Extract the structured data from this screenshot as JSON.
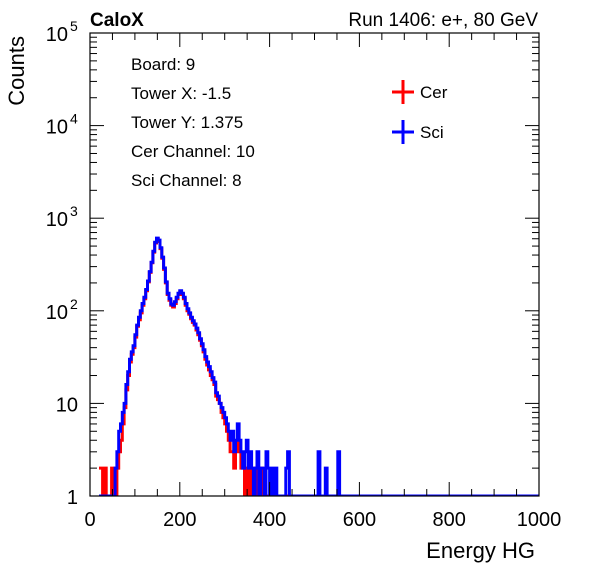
{
  "header": {
    "left_label": "CaloX",
    "right_label": "Run 1406: e+, 80 GeV"
  },
  "info_box": {
    "lines": [
      "Board: 9",
      "Tower X: -1.5",
      "Tower Y: 1.375",
      "Cer Channel: 10",
      "Sci Channel: 8"
    ]
  },
  "chart_data": {
    "type": "line",
    "xlabel": "Energy HG",
    "ylabel": "Counts",
    "xlim": [
      0,
      1000
    ],
    "ylim": [
      1,
      100000
    ],
    "yscale": "log",
    "x_ticks": [
      0,
      200,
      400,
      600,
      800,
      1000
    ],
    "x_tick_labels": [
      "0",
      "200",
      "400",
      "600",
      "800",
      "1000"
    ],
    "y_ticks": [
      1,
      10,
      100,
      1000,
      10000,
      100000
    ],
    "y_tick_labels": [
      {
        "base": "1",
        "exp": ""
      },
      {
        "base": "10",
        "exp": ""
      },
      {
        "base": "10",
        "exp": "2"
      },
      {
        "base": "10",
        "exp": "3"
      },
      {
        "base": "10",
        "exp": "4"
      },
      {
        "base": "10",
        "exp": "5"
      }
    ],
    "legend": {
      "position": "top-right"
    },
    "bin_width": 4,
    "series": [
      {
        "name": "Cer",
        "color": "#ff0000",
        "points": [
          [
            20,
            2
          ],
          [
            24,
            2
          ],
          [
            28,
            1
          ],
          [
            32,
            2
          ],
          [
            36,
            1
          ],
          [
            40,
            1
          ],
          [
            44,
            1
          ],
          [
            48,
            2
          ],
          [
            52,
            1
          ],
          [
            56,
            1
          ],
          [
            60,
            2
          ],
          [
            64,
            3
          ],
          [
            68,
            4
          ],
          [
            72,
            6
          ],
          [
            76,
            9
          ],
          [
            80,
            14
          ],
          [
            84,
            20
          ],
          [
            88,
            28
          ],
          [
            92,
            34
          ],
          [
            96,
            40
          ],
          [
            100,
            52
          ],
          [
            104,
            68
          ],
          [
            108,
            80
          ],
          [
            112,
            95
          ],
          [
            116,
            115
          ],
          [
            120,
            135
          ],
          [
            124,
            165
          ],
          [
            128,
            205
          ],
          [
            132,
            260
          ],
          [
            136,
            330
          ],
          [
            140,
            430
          ],
          [
            144,
            540
          ],
          [
            148,
            600
          ],
          [
            152,
            560
          ],
          [
            156,
            470
          ],
          [
            160,
            370
          ],
          [
            164,
            280
          ],
          [
            168,
            200
          ],
          [
            172,
            150
          ],
          [
            176,
            130
          ],
          [
            180,
            115
          ],
          [
            184,
            110
          ],
          [
            188,
            120
          ],
          [
            192,
            135
          ],
          [
            196,
            150
          ],
          [
            200,
            160
          ],
          [
            204,
            150
          ],
          [
            208,
            135
          ],
          [
            212,
            115
          ],
          [
            216,
            100
          ],
          [
            220,
            92
          ],
          [
            224,
            82
          ],
          [
            228,
            75
          ],
          [
            232,
            70
          ],
          [
            236,
            62
          ],
          [
            240,
            55
          ],
          [
            244,
            48
          ],
          [
            248,
            42
          ],
          [
            252,
            36
          ],
          [
            256,
            30
          ],
          [
            260,
            26
          ],
          [
            264,
            23
          ],
          [
            268,
            20
          ],
          [
            272,
            18
          ],
          [
            276,
            16
          ],
          [
            280,
            12
          ],
          [
            284,
            11
          ],
          [
            288,
            10
          ],
          [
            292,
            8
          ],
          [
            296,
            7
          ],
          [
            300,
            6
          ],
          [
            304,
            5
          ],
          [
            308,
            4
          ],
          [
            312,
            3
          ],
          [
            316,
            3
          ],
          [
            320,
            2
          ],
          [
            324,
            3
          ],
          [
            328,
            4
          ],
          [
            332,
            3
          ],
          [
            336,
            2
          ],
          [
            340,
            2
          ],
          [
            344,
            1
          ],
          [
            348,
            2
          ],
          [
            352,
            1
          ],
          [
            356,
            2
          ],
          [
            360,
            1
          ],
          [
            364,
            1
          ],
          [
            368,
            2
          ],
          [
            372,
            1
          ],
          [
            376,
            1
          ],
          [
            380,
            2
          ],
          [
            384,
            1
          ],
          [
            388,
            1
          ],
          [
            392,
            1
          ],
          [
            396,
            1
          ],
          [
            400,
            1
          ]
        ]
      },
      {
        "name": "Sci",
        "color": "#0000ff",
        "points": [
          [
            20,
            1
          ],
          [
            24,
            1
          ],
          [
            28,
            1
          ],
          [
            32,
            1
          ],
          [
            36,
            1
          ],
          [
            40,
            1
          ],
          [
            44,
            1
          ],
          [
            48,
            1
          ],
          [
            52,
            1
          ],
          [
            56,
            2
          ],
          [
            60,
            3
          ],
          [
            64,
            5
          ],
          [
            68,
            6
          ],
          [
            72,
            8
          ],
          [
            76,
            10
          ],
          [
            80,
            16
          ],
          [
            84,
            22
          ],
          [
            88,
            30
          ],
          [
            92,
            36
          ],
          [
            96,
            42
          ],
          [
            100,
            55
          ],
          [
            104,
            70
          ],
          [
            108,
            85
          ],
          [
            112,
            100
          ],
          [
            116,
            120
          ],
          [
            120,
            140
          ],
          [
            124,
            170
          ],
          [
            128,
            210
          ],
          [
            132,
            265
          ],
          [
            136,
            335
          ],
          [
            140,
            440
          ],
          [
            144,
            550
          ],
          [
            148,
            610
          ],
          [
            152,
            580
          ],
          [
            156,
            480
          ],
          [
            160,
            380
          ],
          [
            164,
            290
          ],
          [
            168,
            205
          ],
          [
            172,
            155
          ],
          [
            176,
            135
          ],
          [
            180,
            118
          ],
          [
            184,
            115
          ],
          [
            188,
            125
          ],
          [
            192,
            140
          ],
          [
            196,
            155
          ],
          [
            200,
            165
          ],
          [
            204,
            155
          ],
          [
            208,
            140
          ],
          [
            212,
            120
          ],
          [
            216,
            105
          ],
          [
            220,
            95
          ],
          [
            224,
            85
          ],
          [
            228,
            78
          ],
          [
            232,
            72
          ],
          [
            236,
            65
          ],
          [
            240,
            58
          ],
          [
            244,
            50
          ],
          [
            248,
            44
          ],
          [
            252,
            38
          ],
          [
            256,
            32
          ],
          [
            260,
            28
          ],
          [
            264,
            25
          ],
          [
            268,
            22
          ],
          [
            272,
            19
          ],
          [
            276,
            17
          ],
          [
            280,
            13
          ],
          [
            284,
            12
          ],
          [
            288,
            10
          ],
          [
            292,
            9
          ],
          [
            296,
            8
          ],
          [
            300,
            7
          ],
          [
            304,
            6
          ],
          [
            308,
            5
          ],
          [
            312,
            4
          ],
          [
            316,
            5
          ],
          [
            320,
            3
          ],
          [
            324,
            4
          ],
          [
            328,
            6
          ],
          [
            332,
            4
          ],
          [
            336,
            3
          ],
          [
            340,
            2
          ],
          [
            344,
            3
          ],
          [
            348,
            4
          ],
          [
            352,
            2
          ],
          [
            356,
            3
          ],
          [
            360,
            2
          ],
          [
            364,
            1
          ],
          [
            368,
            2
          ],
          [
            372,
            3
          ],
          [
            376,
            1
          ],
          [
            380,
            2
          ],
          [
            384,
            2
          ],
          [
            388,
            1
          ],
          [
            392,
            3
          ],
          [
            396,
            2
          ],
          [
            400,
            1
          ],
          [
            404,
            2
          ],
          [
            408,
            1
          ],
          [
            412,
            2
          ],
          [
            416,
            1
          ],
          [
            420,
            1
          ],
          [
            424,
            1
          ],
          [
            428,
            1
          ],
          [
            432,
            1
          ],
          [
            436,
            2
          ],
          [
            440,
            3
          ],
          [
            444,
            1
          ],
          [
            448,
            1
          ],
          [
            452,
            1
          ],
          [
            456,
            1
          ],
          [
            460,
            1
          ],
          [
            464,
            1
          ],
          [
            468,
            1
          ],
          [
            472,
            1
          ],
          [
            476,
            1
          ],
          [
            480,
            1
          ],
          [
            484,
            1
          ],
          [
            488,
            1
          ],
          [
            492,
            1
          ],
          [
            496,
            1
          ],
          [
            500,
            1
          ],
          [
            504,
            1
          ],
          [
            508,
            3
          ],
          [
            512,
            1
          ],
          [
            516,
            1
          ],
          [
            520,
            1
          ],
          [
            524,
            2
          ],
          [
            528,
            1
          ],
          [
            532,
            1
          ],
          [
            536,
            1
          ],
          [
            540,
            1
          ],
          [
            544,
            1
          ],
          [
            548,
            1
          ],
          [
            552,
            3
          ],
          [
            556,
            1
          ]
        ]
      }
    ]
  }
}
